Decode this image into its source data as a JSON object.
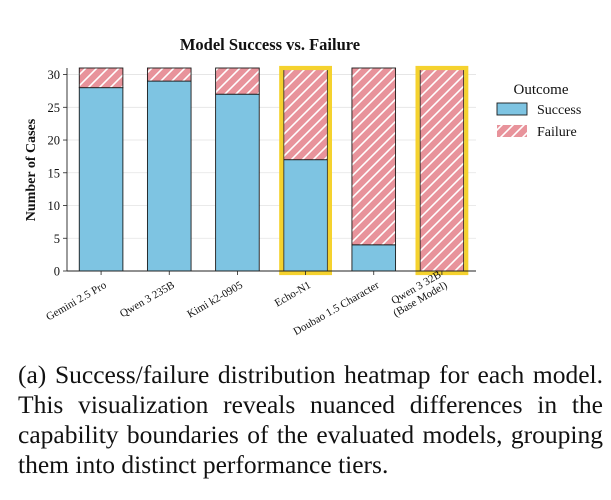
{
  "chart_data": {
    "type": "bar",
    "stacked": true,
    "title": "Model Success vs. Failure",
    "xlabel": "",
    "ylabel": "Number of Cases",
    "ylim": [
      0,
      31
    ],
    "yticks": [
      0,
      5,
      10,
      15,
      20,
      25,
      30
    ],
    "grid": true,
    "categories": [
      [
        "Gemini 2.5 Pro"
      ],
      [
        "Qwen 3 235B"
      ],
      [
        "Kimi k2-0905"
      ],
      [
        "Echo-N1"
      ],
      [
        "Doubao 1.5 Character"
      ],
      [
        "Qwen 3 32B",
        "(Base Model)"
      ]
    ],
    "series": [
      {
        "name": "Success",
        "values": [
          28,
          29,
          27,
          17,
          4,
          0
        ],
        "color": "#7ec4e2",
        "pattern": "none"
      },
      {
        "name": "Failure",
        "values": [
          3,
          2,
          4,
          14,
          27,
          31
        ],
        "color": "#e8939b",
        "pattern": "hatch"
      }
    ],
    "highlighted": [
      "Echo-N1",
      "Qwen 3 32B (Base Model)"
    ],
    "highlight_color": "#f5d22e",
    "legend": {
      "title": "Outcome",
      "placement": "right"
    }
  },
  "caption": "(a) Success/failure distribution heatmap for each model. This visualization reveals nuanced differences in the capability boundaries of the evaluated models, grouping them into distinct performance tiers."
}
